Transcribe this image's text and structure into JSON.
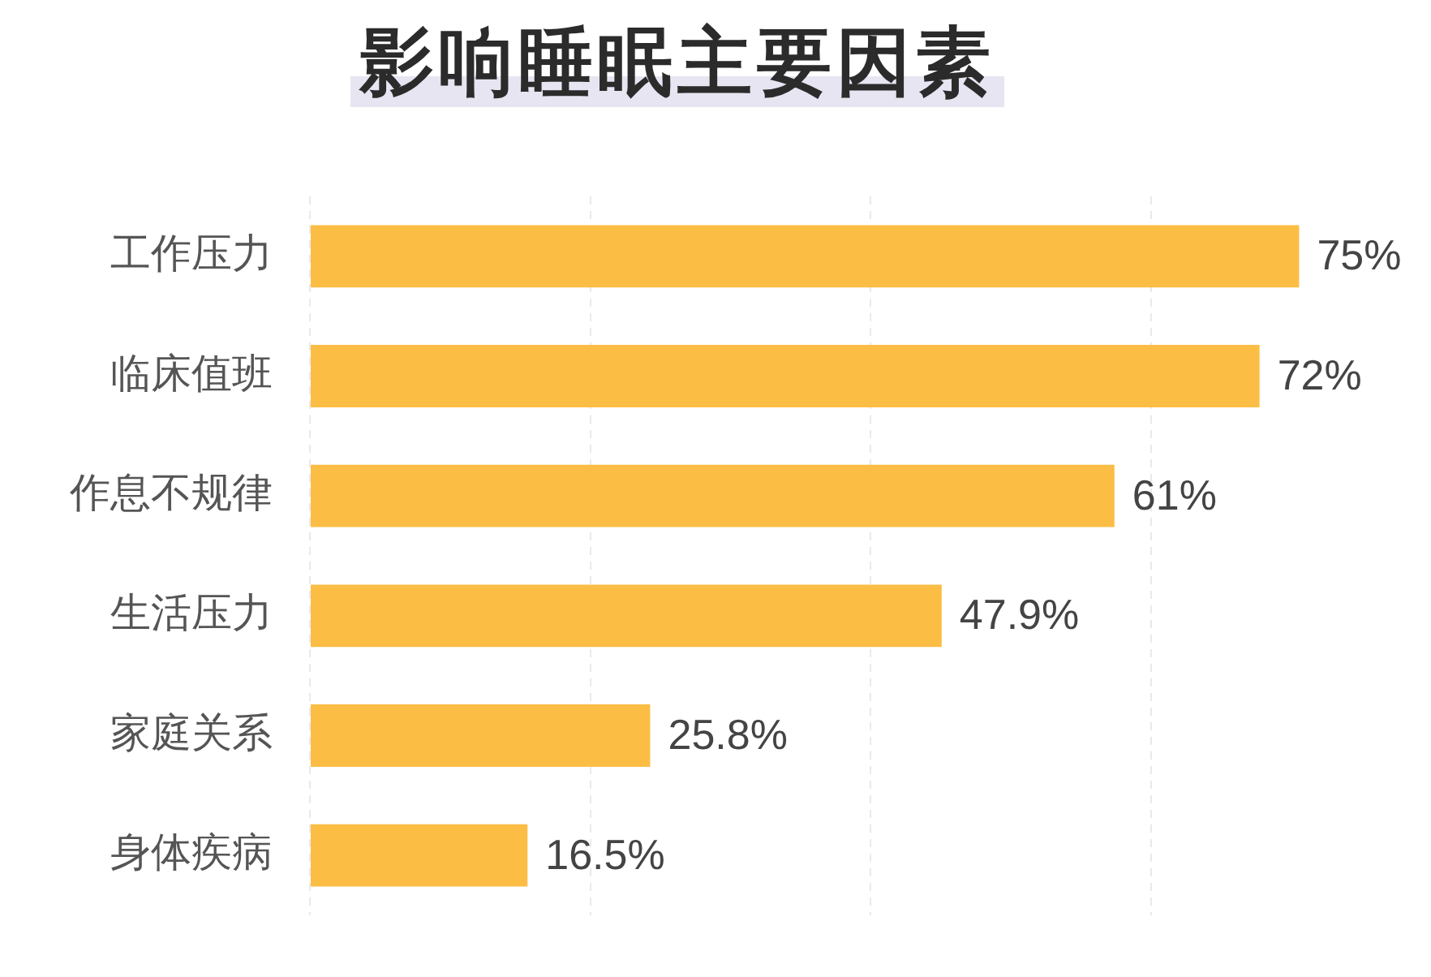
{
  "chart_data": {
    "type": "bar",
    "orientation": "horizontal",
    "title": "影响睡眠主要因素",
    "categories": [
      "工作压力",
      "临床值班",
      "作息不规律",
      "生活压力",
      "家庭关系",
      "身体疾病"
    ],
    "values": [
      75,
      72,
      61,
      47.9,
      25.8,
      16.5
    ],
    "value_labels": [
      "75%",
      "72%",
      "61%",
      "47.9%",
      "25.8%",
      "16.5%"
    ],
    "color": "#fcbd45",
    "xlim": [
      0,
      85
    ],
    "xticks": [
      {
        "value": 0,
        "label": null
      },
      {
        "value": 21.25,
        "label": null
      },
      {
        "value": 42.5,
        "label": null
      },
      {
        "value": 63.75,
        "label": null
      }
    ],
    "grid": "x",
    "tick_labels": "y"
  }
}
